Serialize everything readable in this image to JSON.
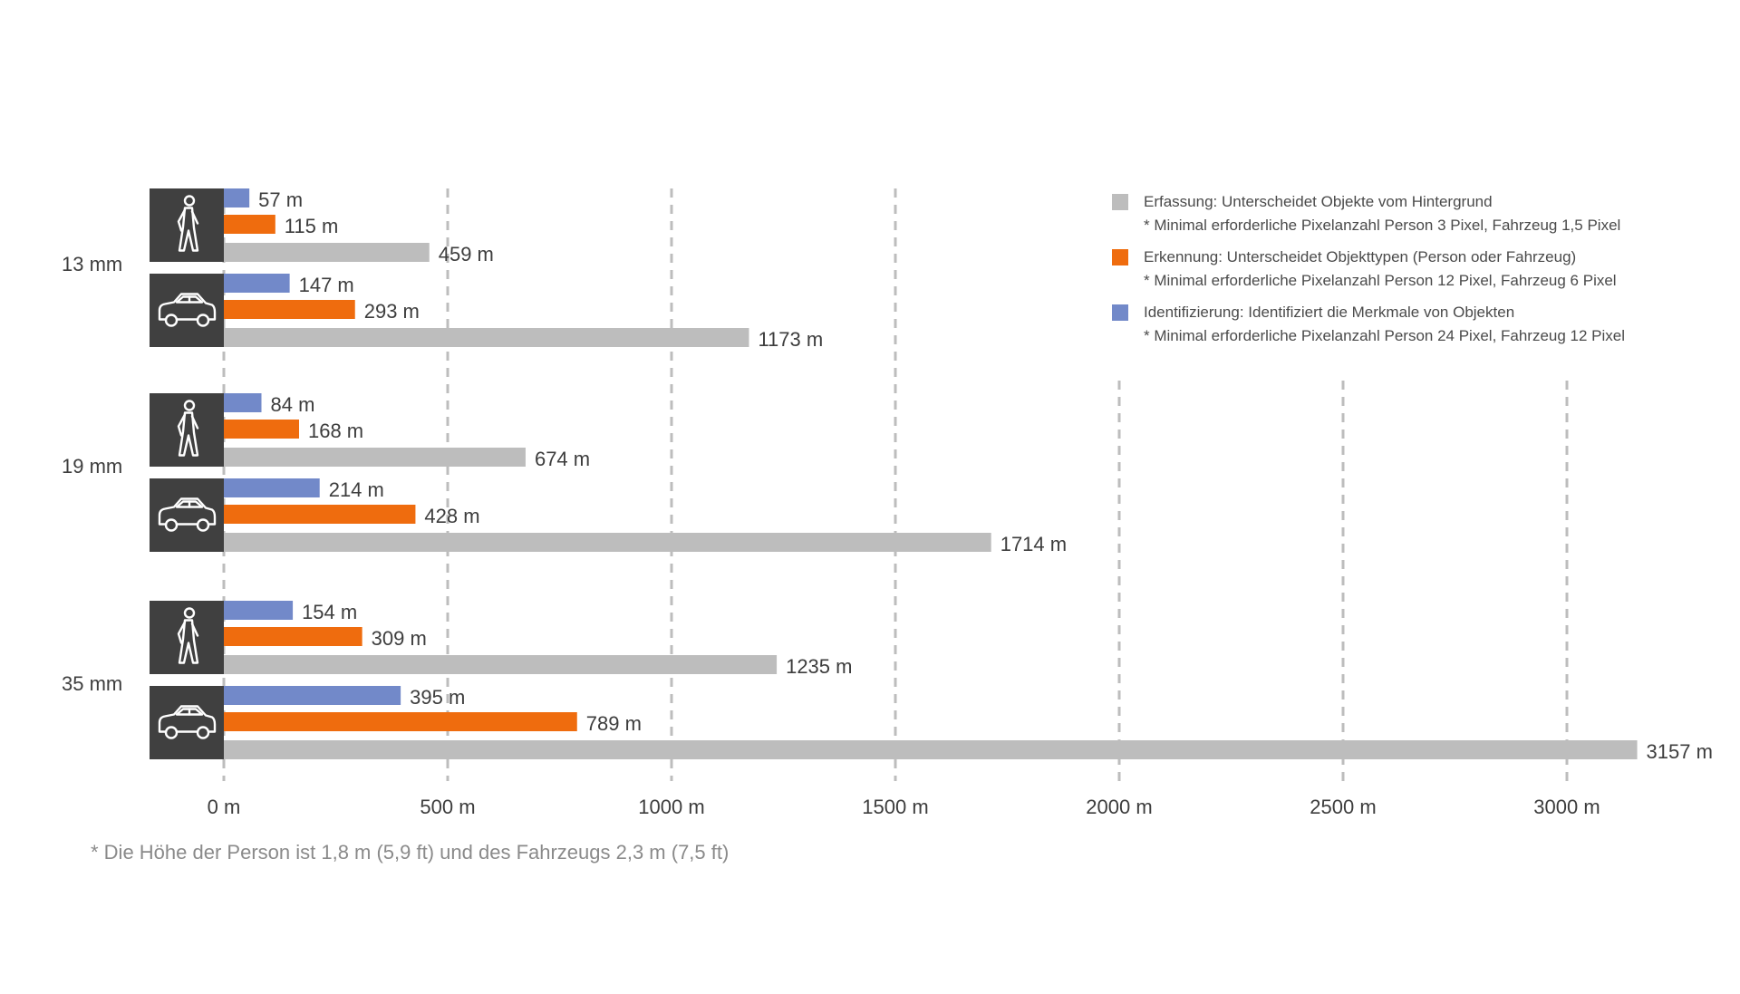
{
  "chart_data": {
    "type": "bar",
    "orientation": "horizontal",
    "x_axis": {
      "min": 0,
      "max": 3000,
      "ticks": [
        0,
        500,
        1000,
        1500,
        2000,
        2500,
        3000
      ],
      "tick_labels": [
        "0 m",
        "500 m",
        "1000 m",
        "1500 m",
        "2000 m",
        "2500 m",
        "3000 m"
      ]
    },
    "grid": "vertical-dashed",
    "legend_position": "top-right",
    "series": [
      {
        "key": "identification",
        "color": "#7289c9"
      },
      {
        "key": "recognition",
        "color": "#ef6c0e"
      },
      {
        "key": "detection",
        "color": "#bdbdbd"
      }
    ],
    "groups": [
      {
        "label": "13 mm",
        "rows": [
          {
            "target": "person",
            "icon": "pedestrian-icon",
            "values": {
              "identification": 57,
              "recognition": 115,
              "detection": 459
            },
            "labels": {
              "identification": "57 m",
              "recognition": "115 m",
              "detection": "459 m"
            }
          },
          {
            "target": "vehicle",
            "icon": "car-icon",
            "values": {
              "identification": 147,
              "recognition": 293,
              "detection": 1173
            },
            "labels": {
              "identification": "147 m",
              "recognition": "293 m",
              "detection": "1173 m"
            }
          }
        ]
      },
      {
        "label": "19 mm",
        "rows": [
          {
            "target": "person",
            "icon": "pedestrian-icon",
            "values": {
              "identification": 84,
              "recognition": 168,
              "detection": 674
            },
            "labels": {
              "identification": "84 m",
              "recognition": "168 m",
              "detection": "674 m"
            }
          },
          {
            "target": "vehicle",
            "icon": "car-icon",
            "values": {
              "identification": 214,
              "recognition": 428,
              "detection": 1714
            },
            "labels": {
              "identification": "214 m",
              "recognition": "428 m",
              "detection": "1714 m"
            }
          }
        ]
      },
      {
        "label": "35 mm",
        "rows": [
          {
            "target": "person",
            "icon": "pedestrian-icon",
            "values": {
              "identification": 154,
              "recognition": 309,
              "detection": 1235
            },
            "labels": {
              "identification": "154 m",
              "recognition": "309 m",
              "detection": "1235 m"
            }
          },
          {
            "target": "vehicle",
            "icon": "car-icon",
            "values": {
              "identification": 395,
              "recognition": 789,
              "detection": 3157
            },
            "labels": {
              "identification": "395 m",
              "recognition": "789 m",
              "detection": "3157 m"
            }
          }
        ]
      }
    ],
    "legend": [
      {
        "series": "detection",
        "color": "#bdbdbd",
        "title": "Erfassung: Unterscheidet Objekte vom Hintergrund",
        "note": "* Minimal erforderliche Pixelanzahl Person 3 Pixel, Fahrzeug 1,5 Pixel"
      },
      {
        "series": "recognition",
        "color": "#ef6c0e",
        "title": "Erkennung: Unterscheidet Objekttypen (Person oder Fahrzeug)",
        "note": "* Minimal erforderliche Pixelanzahl Person 12 Pixel, Fahrzeug 6 Pixel"
      },
      {
        "series": "identification",
        "color": "#7289c9",
        "title": "Identifizierung: Identifiziert die Merkmale von Objekten",
        "note": "* Minimal erforderliche Pixelanzahl Person 24 Pixel, Fahrzeug 12 Pixel"
      }
    ],
    "footnote": "* Die Höhe der Person ist 1,8 m (5,9 ft) und des Fahrzeugs 2,3 m (7,5 ft)"
  },
  "colors": {
    "icon_box": "#404040",
    "icon_stroke": "#ffffff",
    "grid": "#bdbdbd"
  }
}
